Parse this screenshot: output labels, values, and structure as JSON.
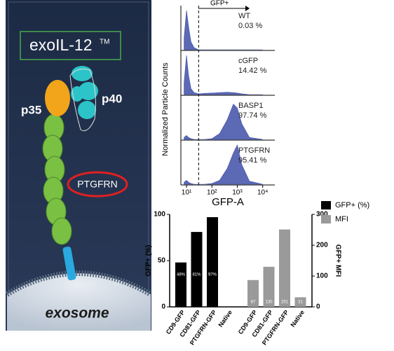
{
  "illustration": {
    "title": "exoIL-12",
    "trademark": "TM",
    "p35": "p35",
    "p40": "p40",
    "protein": "PTGFRN",
    "vesicle": "exosome"
  },
  "chart_data": [
    {
      "type": "area",
      "xlabel": "GFP-A",
      "ylabel": "Normalized Particle Counts",
      "xscale": "log",
      "xlim": [
        6,
        30000
      ],
      "xticks": [
        {
          "value": 10,
          "label": "10¹"
        },
        {
          "value": 100,
          "label": "10²"
        },
        {
          "value": 1000,
          "label": "10³"
        },
        {
          "value": 10000,
          "label": "10⁴"
        }
      ],
      "ylim": [
        0,
        1
      ],
      "gate": 30,
      "gate_label": "GFP+",
      "x": [
        8,
        10,
        12,
        15,
        20,
        30,
        50,
        100,
        200,
        400,
        700,
        1000,
        1500,
        3000,
        10000
      ],
      "series": [
        {
          "name": "WT",
          "percent_label": "0.03 %",
          "color": "#3f4fa8",
          "values": [
            0.3,
            1,
            0.6,
            0.2,
            0.05,
            0,
            0,
            0,
            0,
            0,
            0,
            0,
            0,
            0,
            0
          ]
        },
        {
          "name": "cGFP",
          "percent_label": "14.42 %",
          "color": "#3f4fa8",
          "values": [
            0.3,
            1,
            0.5,
            0.15,
            0.05,
            0.02,
            0.03,
            0.04,
            0.05,
            0.06,
            0.05,
            0.04,
            0.02,
            0,
            0
          ]
        },
        {
          "name": "BASP1",
          "percent_label": "97.74 %",
          "color": "#3f4fa8",
          "values": [
            0.05,
            0.1,
            0.05,
            0.02,
            0,
            0,
            0,
            0.02,
            0.15,
            0.5,
            0.9,
            0.8,
            0.4,
            0.05,
            0
          ]
        },
        {
          "name": "PTGFRN",
          "percent_label": "95.41 %",
          "color": "#3f4fa8",
          "values": [
            0.05,
            0.1,
            0.05,
            0.02,
            0,
            0,
            0,
            0.02,
            0.1,
            0.4,
            0.8,
            1,
            0.5,
            0.08,
            0
          ]
        }
      ]
    },
    {
      "type": "bar",
      "ylabel": "GFP+ (%)",
      "y2label": "GFP+ MFI",
      "ylim": [
        0,
        100
      ],
      "yticks": [
        0,
        50,
        100
      ],
      "y2lim": [
        0,
        300
      ],
      "y2ticks": [
        0,
        100,
        200,
        300
      ],
      "legend": "top-right",
      "categories": [
        "CD9-GFP",
        "CD81-GFP",
        "PTGFRN-GFP",
        "Native",
        "CD9-GFP",
        "CD81-GFP",
        "PTGFRN-GFP",
        "Native"
      ],
      "series": [
        {
          "name": "GFP+ (%)",
          "color": "#000000",
          "values": [
            48,
            81,
            97,
            null,
            null,
            null,
            null,
            null
          ],
          "value_labels": [
            "48%",
            "81%",
            "97%",
            null,
            null,
            null,
            null,
            null
          ]
        },
        {
          "name": "MFI",
          "color": "#9a9a9a",
          "axis": "y2",
          "values": [
            null,
            null,
            null,
            null,
            87,
            130,
            251,
            31
          ]
        }
      ]
    }
  ]
}
